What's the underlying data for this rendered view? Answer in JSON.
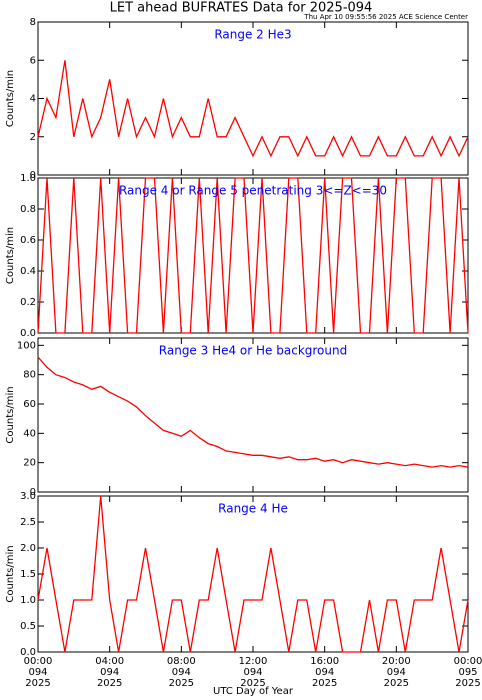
{
  "title": "LET ahead BUFRATES Data for 2025-094",
  "timestamp": "Thu Apr 10 09:55:56 2025 ACE Science Center",
  "x_label": "UTC Day of Year",
  "chart_data": [
    {
      "type": "line",
      "label": "Range 2 He3",
      "y_label": "Counts/min",
      "color": "#ff0000",
      "x": [
        0,
        0.5,
        1,
        1.5,
        2,
        2.5,
        3,
        3.5,
        4,
        4.5,
        5,
        5.5,
        6,
        6.5,
        7,
        7.5,
        8,
        8.5,
        9,
        9.5,
        10,
        10.5,
        11,
        11.5,
        12,
        12.5,
        13,
        13.5,
        14,
        14.5,
        15,
        15.5,
        16,
        16.5,
        17,
        17.5,
        18,
        18.5,
        19,
        19.5,
        20,
        20.5,
        21,
        21.5,
        22,
        22.5,
        23,
        23.5,
        24
      ],
      "values": [
        2,
        4,
        3,
        6,
        2,
        4,
        2,
        3,
        5,
        2,
        4,
        2,
        3,
        2,
        4,
        2,
        3,
        2,
        2,
        4,
        2,
        2,
        3,
        2,
        1,
        2,
        1,
        2,
        2,
        1,
        2,
        1,
        1,
        2,
        1,
        2,
        1,
        1,
        2,
        1,
        1,
        2,
        1,
        1,
        2,
        1,
        2,
        1,
        2
      ],
      "xlim": [
        0,
        24
      ],
      "ylim": [
        0,
        8
      ],
      "yticks": [
        0,
        2,
        4,
        6,
        8
      ]
    },
    {
      "type": "line",
      "label": "Range 4 or Range 5 penetrating 3<=Z<=30",
      "y_label": "Counts/min",
      "color": "#ff0000",
      "x": [
        0,
        0.5,
        1,
        1.5,
        2,
        2.5,
        3,
        3.5,
        4,
        4.5,
        5,
        5.5,
        6,
        6.5,
        7,
        7.5,
        8,
        8.5,
        9,
        9.5,
        10,
        10.5,
        11,
        11.5,
        12,
        12.5,
        13,
        13.5,
        14,
        14.5,
        15,
        15.5,
        16,
        16.5,
        17,
        17.5,
        18,
        18.5,
        19,
        19.5,
        20,
        20.5,
        21,
        21.5,
        22,
        22.5,
        23,
        23.5,
        24
      ],
      "values": [
        0,
        1,
        0,
        0,
        1,
        0,
        0,
        1,
        0,
        1,
        0,
        0,
        1,
        1,
        0,
        1,
        0,
        0,
        1,
        0,
        1,
        0,
        1,
        1,
        0,
        1,
        0,
        0,
        1,
        1,
        0,
        0,
        1,
        0,
        1,
        1,
        0,
        0,
        1,
        0,
        1,
        1,
        0,
        0,
        1,
        1,
        0,
        1,
        0
      ],
      "xlim": [
        0,
        24
      ],
      "ylim": [
        0,
        1
      ],
      "yticks": [
        {
          "value": 0,
          "label": "0.0"
        },
        {
          "value": 0.2,
          "label": "0.2"
        },
        {
          "value": 0.4,
          "label": "0.4"
        },
        {
          "value": 0.6,
          "label": "0.6"
        },
        {
          "value": 0.8,
          "label": "0.8"
        },
        {
          "value": 1,
          "label": "1.0"
        }
      ]
    },
    {
      "type": "line",
      "label": "Range 3 He4 or He background",
      "y_label": "Counts/min",
      "color": "#ff0000",
      "x": [
        0,
        0.5,
        1,
        1.5,
        2,
        2.5,
        3,
        3.5,
        4,
        4.5,
        5,
        5.5,
        6,
        6.5,
        7,
        7.5,
        8,
        8.5,
        9,
        9.5,
        10,
        10.5,
        11,
        11.5,
        12,
        12.5,
        13,
        13.5,
        14,
        14.5,
        15,
        15.5,
        16,
        16.5,
        17,
        17.5,
        18,
        18.5,
        19,
        19.5,
        20,
        20.5,
        21,
        21.5,
        22,
        22.5,
        23,
        23.5,
        24
      ],
      "values": [
        92,
        85,
        80,
        78,
        75,
        73,
        70,
        72,
        68,
        65,
        62,
        58,
        52,
        47,
        42,
        40,
        38,
        42,
        37,
        33,
        31,
        28,
        27,
        26,
        25,
        25,
        24,
        23,
        24,
        22,
        22,
        23,
        21,
        22,
        20,
        22,
        21,
        20,
        19,
        20,
        19,
        18,
        19,
        18,
        17,
        18,
        17,
        18,
        17
      ],
      "xlim": [
        0,
        24
      ],
      "ylim": [
        0,
        105
      ],
      "yticks": [
        0,
        20,
        40,
        60,
        80,
        100
      ]
    },
    {
      "type": "line",
      "label": "Range 4 He",
      "y_label": "Counts/min",
      "color": "#ff0000",
      "x": [
        0,
        0.5,
        1,
        1.5,
        2,
        2.5,
        3,
        3.5,
        4,
        4.5,
        5,
        5.5,
        6,
        6.5,
        7,
        7.5,
        8,
        8.5,
        9,
        9.5,
        10,
        10.5,
        11,
        11.5,
        12,
        12.5,
        13,
        13.5,
        14,
        14.5,
        15,
        15.5,
        16,
        16.5,
        17,
        17.5,
        18,
        18.5,
        19,
        19.5,
        20,
        20.5,
        21,
        21.5,
        22,
        22.5,
        23,
        23.5,
        24
      ],
      "values": [
        1,
        2,
        1,
        0,
        1,
        1,
        1,
        3,
        1,
        0,
        1,
        1,
        2,
        1,
        0,
        1,
        1,
        0,
        1,
        1,
        2,
        1,
        0,
        1,
        1,
        1,
        2,
        1,
        0,
        1,
        1,
        0,
        1,
        1,
        0,
        0,
        0,
        1,
        0,
        1,
        1,
        0,
        1,
        1,
        1,
        2,
        1,
        0,
        1
      ],
      "xlim": [
        0,
        24
      ],
      "ylim": [
        0,
        3
      ],
      "yticks": [
        {
          "value": 0,
          "label": "0.0"
        },
        {
          "value": 0.5,
          "label": "0.5"
        },
        {
          "value": 1,
          "label": "1.0"
        },
        {
          "value": 1.5,
          "label": "1.5"
        },
        {
          "value": 2,
          "label": "2.0"
        },
        {
          "value": 2.5,
          "label": "2.5"
        },
        {
          "value": 3,
          "label": "3.0"
        }
      ],
      "xticks": [
        {
          "value": 0,
          "label": [
            "00:00",
            "094",
            "2025"
          ]
        },
        {
          "value": 4,
          "label": [
            "04:00",
            "094",
            "2025"
          ]
        },
        {
          "value": 8,
          "label": [
            "08:00",
            "094",
            "2025"
          ]
        },
        {
          "value": 12,
          "label": [
            "12:00",
            "094",
            "2025"
          ]
        },
        {
          "value": 16,
          "label": [
            "16:00",
            "094",
            "2025"
          ]
        },
        {
          "value": 20,
          "label": [
            "20:00",
            "094",
            "2025"
          ]
        },
        {
          "value": 24,
          "label": [
            "00:00",
            "095",
            "2025"
          ]
        }
      ]
    }
  ]
}
